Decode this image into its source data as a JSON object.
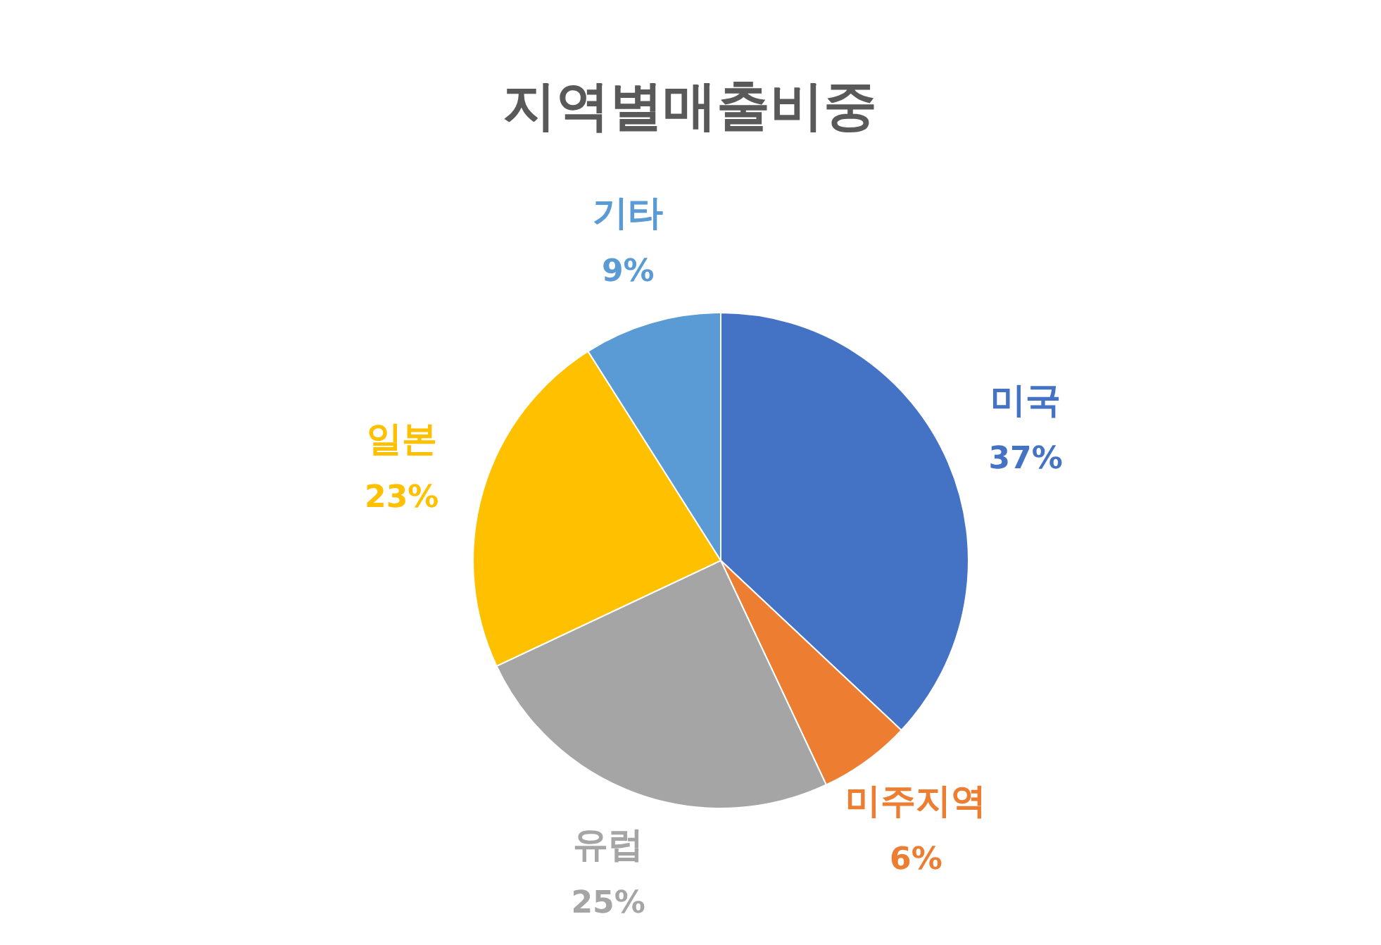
{
  "chart_data": {
    "type": "pie",
    "title": "지역별매출비중",
    "categories": [
      "미국",
      "미주지역",
      "유럽",
      "일본",
      "기타"
    ],
    "values": [
      37,
      6,
      25,
      23,
      9
    ],
    "value_labels": [
      "37%",
      "6%",
      "25%",
      "23%",
      "9%"
    ],
    "colors": [
      "#4472c4",
      "#ed7d31",
      "#a5a5a5",
      "#ffc000",
      "#5b9bd5"
    ]
  }
}
